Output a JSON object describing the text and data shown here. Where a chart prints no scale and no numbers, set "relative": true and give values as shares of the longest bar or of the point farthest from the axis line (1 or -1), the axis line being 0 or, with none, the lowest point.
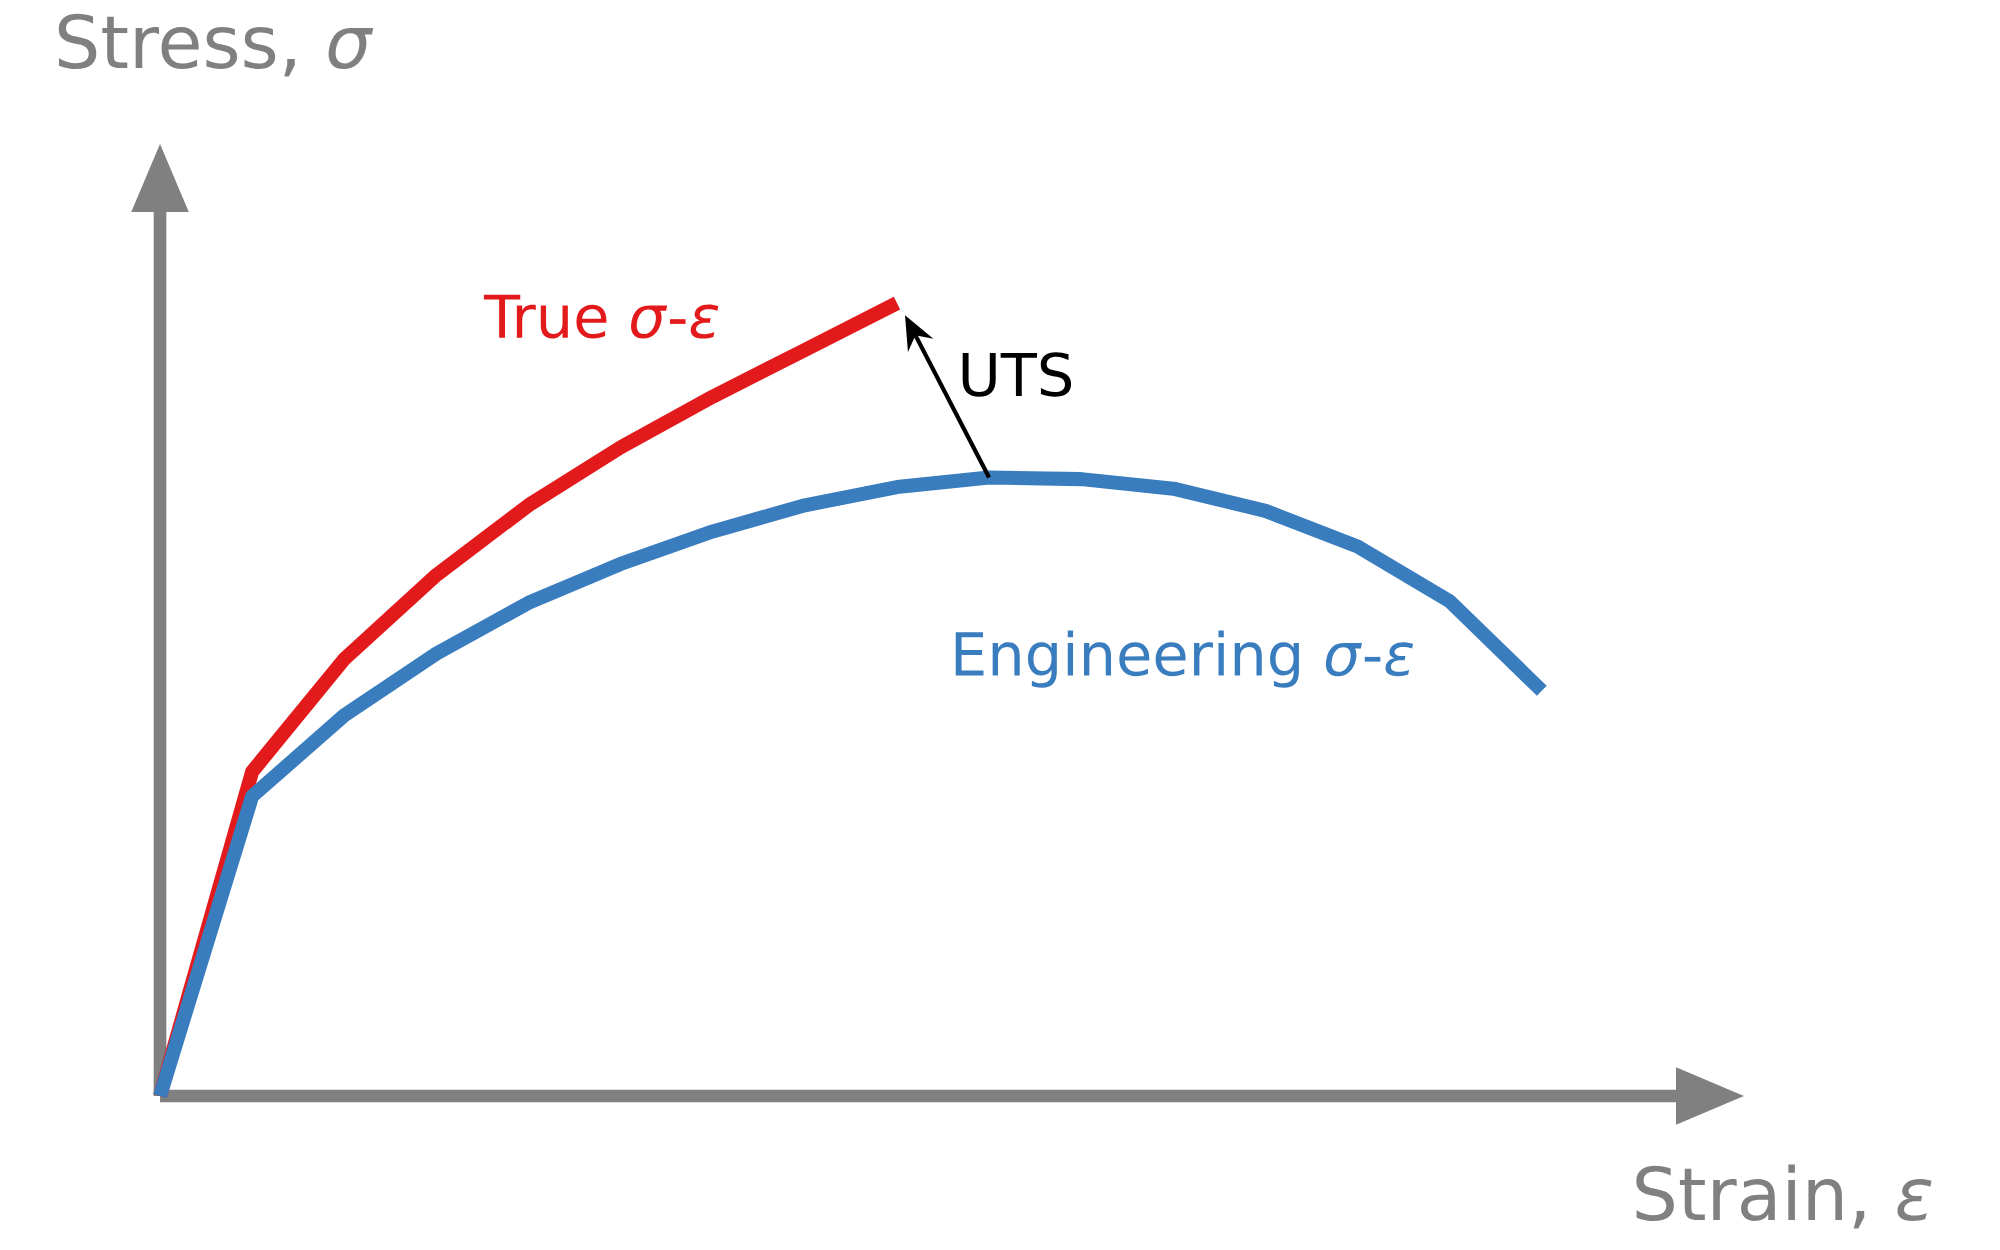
{
  "chart_data": {
    "type": "line",
    "relative": true,
    "xlabel": "Strain, *ε*",
    "ylabel": "Stress, *σ*",
    "categories": [
      null,
      null,
      null,
      null,
      null,
      null,
      null,
      null,
      null,
      null,
      null,
      null,
      null,
      null,
      null,
      null
    ],
    "annotations": [
      "UTS"
    ],
    "series": [
      {
        "name": "True *σ*-*ε*",
        "color": "#e31a1c",
        "values": [
          0,
          0.409,
          0.551,
          0.657,
          0.745,
          0.818,
          0.882,
          0.941,
          1,
          null,
          null,
          null,
          null,
          null,
          null,
          null
        ]
      },
      {
        "name": "Engineering *σ*-*ε*",
        "color": "#3a7dbf",
        "values": [
          0,
          0.378,
          0.48,
          0.558,
          0.622,
          0.671,
          0.712,
          0.745,
          0.768,
          0.78,
          0.778,
          0.766,
          0.738,
          0.693,
          0.624,
          0.511
        ]
      }
    ]
  }
}
